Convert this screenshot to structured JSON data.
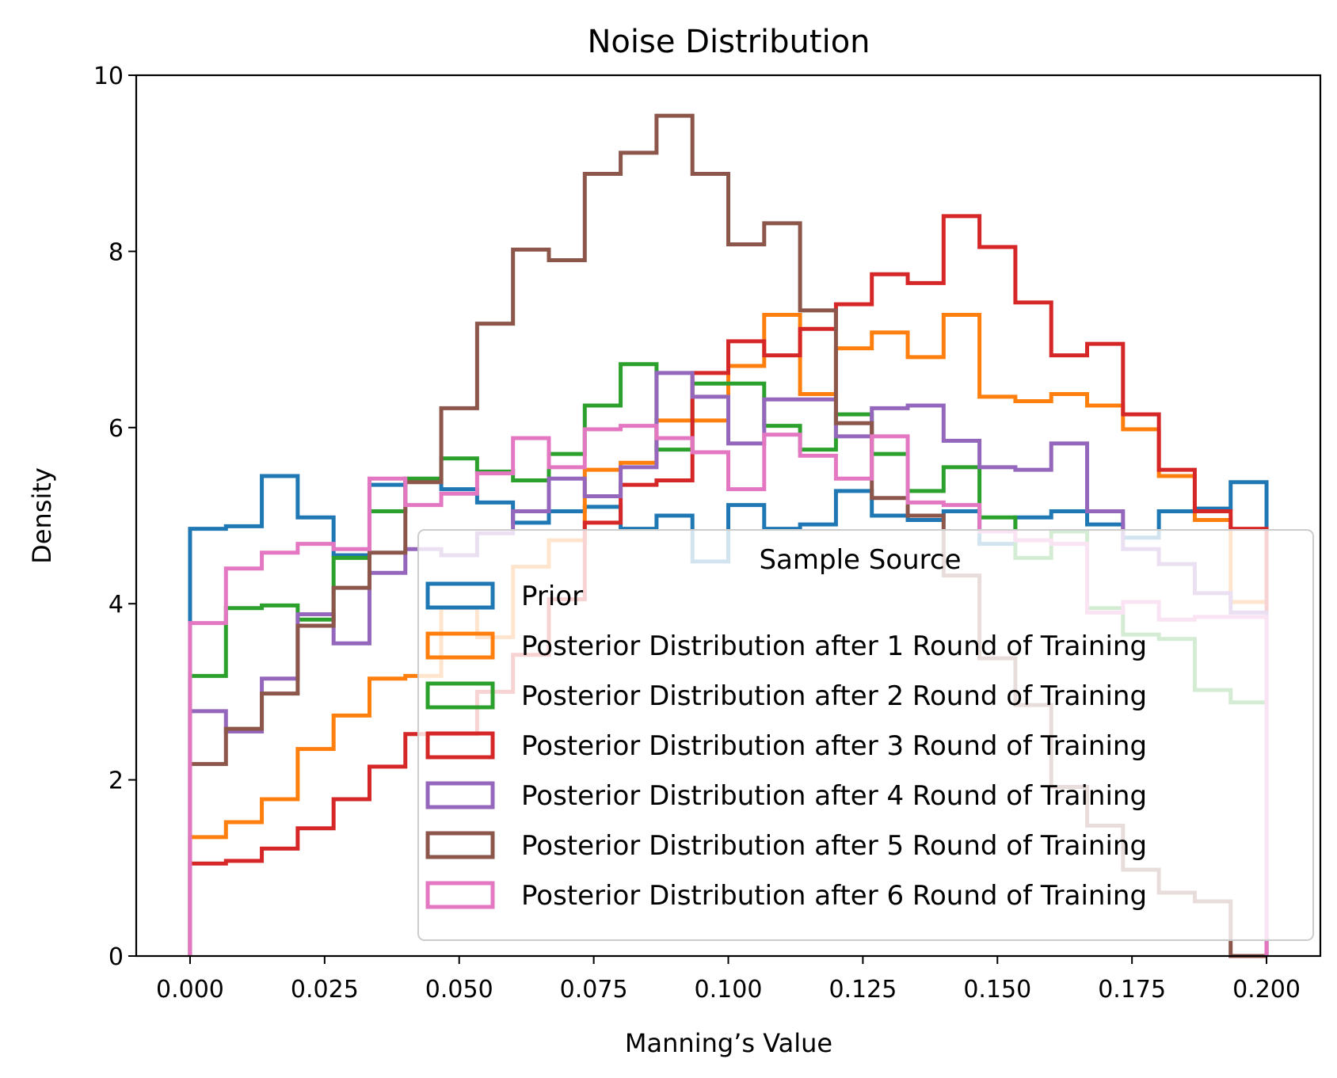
{
  "chart_data": {
    "type": "histogram-step",
    "title": "Noise Distribution",
    "xlabel": "Manning’s Value",
    "ylabel": "Density",
    "xlim": [
      -0.01,
      0.21
    ],
    "ylim": [
      0,
      10
    ],
    "x_ticks": [
      "0.000",
      "0.025",
      "0.050",
      "0.075",
      "0.100",
      "0.125",
      "0.150",
      "0.175",
      "0.200"
    ],
    "y_ticks": [
      "0",
      "2",
      "4",
      "6",
      "8",
      "10"
    ],
    "bin_edges": {
      "start": 0.0,
      "end": 0.2,
      "count": 30
    },
    "grid": false,
    "legend": {
      "title": "Sample Source",
      "position": "lower right"
    },
    "series": [
      {
        "name": "Prior",
        "color": "#1f77b4",
        "values": [
          4.85,
          4.88,
          5.45,
          4.98,
          4.55,
          5.35,
          5.4,
          5.3,
          5.15,
          4.92,
          5.05,
          5.1,
          4.85,
          5.0,
          4.48,
          5.12,
          4.85,
          4.9,
          5.28,
          5.0,
          4.95,
          5.05,
          4.68,
          4.98,
          5.05,
          4.9,
          4.75,
          5.05,
          5.08,
          5.38
        ]
      },
      {
        "name": "Posterior Distribution after 1 Round of Training",
        "color": "#ff7f0e",
        "values": [
          1.35,
          1.52,
          1.78,
          2.35,
          2.73,
          3.15,
          3.18,
          3.95,
          3.62,
          4.42,
          4.72,
          5.52,
          5.6,
          6.08,
          6.08,
          6.7,
          7.28,
          6.38,
          6.9,
          7.08,
          6.8,
          7.28,
          6.35,
          6.3,
          6.38,
          6.25,
          5.98,
          5.45,
          4.95,
          4.02
        ]
      },
      {
        "name": "Posterior Distribution after 2 Round of Training",
        "color": "#2ca02c",
        "values": [
          3.18,
          3.95,
          3.98,
          3.82,
          4.52,
          5.05,
          5.42,
          5.65,
          5.5,
          5.4,
          5.7,
          6.25,
          6.72,
          5.75,
          6.5,
          6.5,
          6.02,
          5.75,
          6.15,
          5.7,
          5.28,
          5.55,
          4.98,
          4.52,
          4.82,
          3.95,
          3.65,
          3.6,
          3.02,
          2.88
        ]
      },
      {
        "name": "Posterior Distribution after 3 Round of Training",
        "color": "#d62728",
        "values": [
          1.05,
          1.08,
          1.22,
          1.45,
          1.78,
          2.15,
          2.52,
          2.52,
          3.0,
          3.42,
          4.05,
          4.92,
          5.35,
          5.4,
          6.62,
          6.98,
          6.82,
          7.12,
          7.4,
          7.74,
          7.64,
          8.4,
          8.05,
          7.42,
          6.82,
          6.95,
          6.15,
          5.52,
          5.05,
          4.85
        ]
      },
      {
        "name": "Posterior Distribution after 4 Round of Training",
        "color": "#9467bd",
        "values": [
          2.78,
          2.55,
          3.15,
          3.88,
          3.55,
          4.35,
          4.62,
          4.55,
          4.8,
          5.05,
          5.42,
          5.22,
          5.55,
          6.62,
          6.35,
          5.82,
          6.32,
          6.32,
          5.9,
          6.22,
          6.25,
          5.85,
          5.55,
          5.52,
          5.82,
          5.05,
          4.62,
          4.45,
          4.12,
          3.9
        ]
      },
      {
        "name": "Posterior Distribution after 5 Round of Training",
        "color": "#8c564b",
        "values": [
          2.18,
          2.58,
          2.98,
          3.75,
          4.18,
          4.58,
          5.38,
          6.22,
          7.18,
          8.02,
          7.9,
          8.88,
          9.12,
          9.54,
          8.88,
          8.08,
          8.32,
          7.33,
          6.05,
          5.2,
          5.0,
          4.32,
          3.38,
          2.85,
          1.92,
          1.48,
          0.98,
          0.72,
          0.62,
          0.0
        ]
      },
      {
        "name": "Posterior Distribution after 6 Round of Training",
        "color": "#e377c2",
        "values": [
          3.78,
          4.4,
          4.58,
          4.68,
          4.62,
          5.42,
          5.12,
          5.25,
          5.48,
          5.88,
          5.55,
          5.98,
          6.02,
          5.88,
          5.72,
          5.3,
          5.92,
          5.68,
          5.42,
          5.9,
          5.15,
          5.12,
          4.82,
          4.72,
          4.68,
          3.9,
          4.02,
          3.82,
          3.85,
          3.85
        ]
      }
    ]
  }
}
